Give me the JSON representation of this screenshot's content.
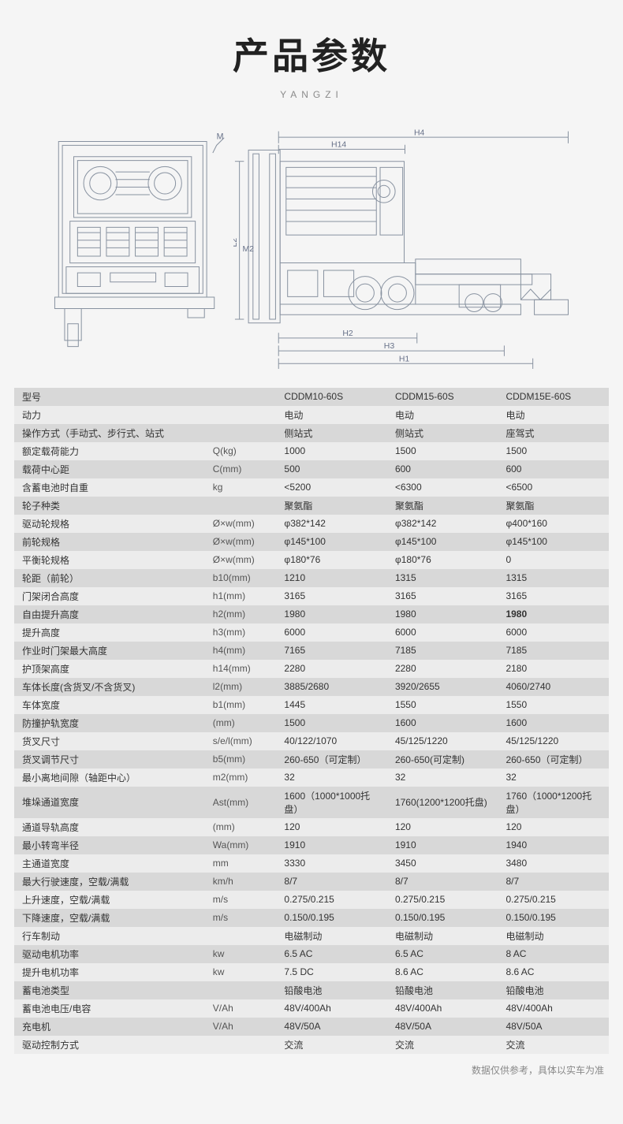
{
  "title": "产品参数",
  "subtitle": "YANGZI",
  "diagram": {
    "front": {
      "labels": [
        "M"
      ]
    },
    "side": {
      "labels": {
        "h4": "H4",
        "h14": "H14",
        "l2": "L2",
        "m2": "M2",
        "h2": "H2",
        "h3": "H3",
        "h1": "H1"
      }
    }
  },
  "colors": {
    "page_bg": "#f5f5f5",
    "row_odd": "#d8d8d8",
    "row_even": "#ececec",
    "text": "#333333",
    "title": "#222222",
    "muted": "#888888",
    "stroke": "#8892a0"
  },
  "table": {
    "columns": [
      "",
      "",
      "CDDM10-60S",
      "CDDM15-60S",
      "CDDM15E-60S"
    ],
    "rows": [
      [
        "型号",
        "",
        "CDDM10-60S",
        "CDDM15-60S",
        "CDDM15E-60S"
      ],
      [
        "动力",
        "",
        "电动",
        "电动",
        "电动"
      ],
      [
        "操作方式（手动式、步行式、站式",
        "",
        "侧站式",
        "侧站式",
        "座驾式"
      ],
      [
        "额定载荷能力",
        "Q(kg)",
        "1000",
        "1500",
        "1500"
      ],
      [
        "载荷中心距",
        "C(mm)",
        "500",
        "600",
        "600"
      ],
      [
        "含蓄电池时自重",
        "kg",
        "<5200",
        "<6300",
        "<6500"
      ],
      [
        "轮子种类",
        "",
        "聚氨酯",
        "聚氨酯",
        "聚氨酯"
      ],
      [
        "驱动轮规格",
        "Ø×w(mm)",
        "φ382*142",
        "φ382*142",
        "φ400*160"
      ],
      [
        "前轮规格",
        "Ø×w(mm)",
        "φ145*100",
        "φ145*100",
        "φ145*100"
      ],
      [
        "平衡轮规格",
        "Ø×w(mm)",
        "φ180*76",
        "φ180*76",
        "0"
      ],
      [
        "轮距（前轮）",
        "b10(mm)",
        "1210",
        "1315",
        "1315"
      ],
      [
        "门架闭合高度",
        "h1(mm)",
        "3165",
        "3165",
        "3165"
      ],
      [
        "自由提升高度",
        "h2(mm)",
        "1980",
        "1980",
        "1980"
      ],
      [
        "提升高度",
        "h3(mm)",
        "6000",
        "6000",
        "6000"
      ],
      [
        "作业时门架最大高度",
        "h4(mm)",
        "7165",
        "7185",
        "7185"
      ],
      [
        "护顶架高度",
        "h14(mm)",
        "2280",
        "2280",
        "2180"
      ],
      [
        "车体长度(含货叉/不含货叉)",
        "l2(mm)",
        "3885/2680",
        "3920/2655",
        "4060/2740"
      ],
      [
        "车体宽度",
        "b1(mm)",
        "1445",
        "1550",
        "1550"
      ],
      [
        "防撞护轨宽度",
        "(mm)",
        "1500",
        "1600",
        "1600"
      ],
      [
        "货叉尺寸",
        "s/e/l(mm)",
        "40/122/1070",
        "45/125/1220",
        "45/125/1220"
      ],
      [
        "货叉调节尺寸",
        "b5(mm)",
        "260-650（可定制）",
        "260-650(可定制)",
        "260-650（可定制）"
      ],
      [
        "最小离地间隙（轴距中心）",
        "m2(mm)",
        "32",
        "32",
        "32"
      ],
      [
        "堆垛通道宽度",
        "Ast(mm)",
        "1600（1000*1000托盘）",
        "1760(1200*1200托盘)",
        "1760（1000*1200托盘）"
      ],
      [
        "通道导轨高度",
        "(mm)",
        "120",
        "120",
        "120"
      ],
      [
        "最小转弯半径",
        "Wa(mm)",
        "1910",
        "1910",
        "1940"
      ],
      [
        "主通道宽度",
        "mm",
        "3330",
        "3450",
        "3480"
      ],
      [
        "最大行驶速度，空载/满载",
        "km/h",
        "8/7",
        "8/7",
        "8/7"
      ],
      [
        "上升速度，空载/满载",
        "m/s",
        "0.275/0.215",
        "0.275/0.215",
        "0.275/0.215"
      ],
      [
        "下降速度，空载/满载",
        "m/s",
        "0.150/0.195",
        "0.150/0.195",
        "0.150/0.195"
      ],
      [
        "行车制动",
        "",
        "电磁制动",
        "电磁制动",
        "电磁制动"
      ],
      [
        "驱动电机功率",
        "kw",
        "6.5 AC",
        "6.5 AC",
        "8 AC"
      ],
      [
        "提升电机功率",
        "kw",
        "7.5 DC",
        "8.6 AC",
        "8.6 AC"
      ],
      [
        "蓄电池类型",
        "",
        "铅酸电池",
        "铅酸电池",
        "铅酸电池"
      ],
      [
        "蓄电池电压/电容",
        "V/Ah",
        "48V/400Ah",
        "48V/400Ah",
        "48V/400Ah"
      ],
      [
        "充电机",
        "V/Ah",
        "48V/50A",
        "48V/50A",
        "48V/50A"
      ],
      [
        "驱动控制方式",
        "",
        "交流",
        "交流",
        "交流"
      ]
    ],
    "highlight": {
      "row": 12,
      "col": 4
    }
  },
  "footer": "数据仅供参考，具体以实车为准"
}
